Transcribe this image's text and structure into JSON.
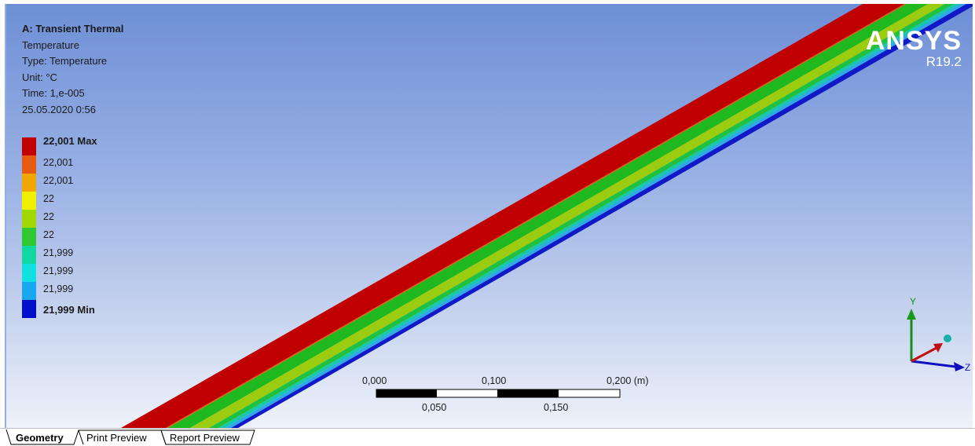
{
  "info": {
    "title": "A: Transient Thermal",
    "result": "Temperature",
    "type": "Type: Temperature",
    "unit": "Unit: °C",
    "time": "Time: 1,e-005",
    "date": "25.05.2020 0:56"
  },
  "legend": {
    "items": [
      {
        "label": "22,001 Max",
        "color": "#c00000",
        "bold": true
      },
      {
        "label": "22,001",
        "color": "#e85a10",
        "bold": false
      },
      {
        "label": "22,001",
        "color": "#f0a800",
        "bold": false
      },
      {
        "label": "22",
        "color": "#f0f000",
        "bold": false
      },
      {
        "label": "22",
        "color": "#a0d800",
        "bold": false
      },
      {
        "label": "22",
        "color": "#30c830",
        "bold": false
      },
      {
        "label": "21,999",
        "color": "#10d8a0",
        "bold": false
      },
      {
        "label": "21,999",
        "color": "#10e0e0",
        "bold": false
      },
      {
        "label": "21,999",
        "color": "#18a8f0",
        "bold": false
      },
      {
        "label": "21,999 Min",
        "color": "#0010c8",
        "bold": true
      }
    ]
  },
  "brand": {
    "name": "ANSYS",
    "version": "R19.2"
  },
  "scale_bar": {
    "top_labels": [
      "0,000",
      "0,100",
      "0,200 (m)"
    ],
    "bottom_labels": [
      "0,050",
      "0,150"
    ]
  },
  "triad": {
    "y": "Y",
    "z": "Z"
  },
  "colors": {
    "band_red": "#c00000",
    "band_green": "#1fb81f",
    "band_yellowgreen": "#9ccc10",
    "band_teal": "#18c8a8",
    "band_cyan": "#30a8e8",
    "band_blue": "#1018c8"
  },
  "tabs": [
    {
      "label": "Geometry",
      "active": true
    },
    {
      "label": "Print Preview",
      "active": false
    },
    {
      "label": "Report Preview",
      "active": false
    }
  ]
}
